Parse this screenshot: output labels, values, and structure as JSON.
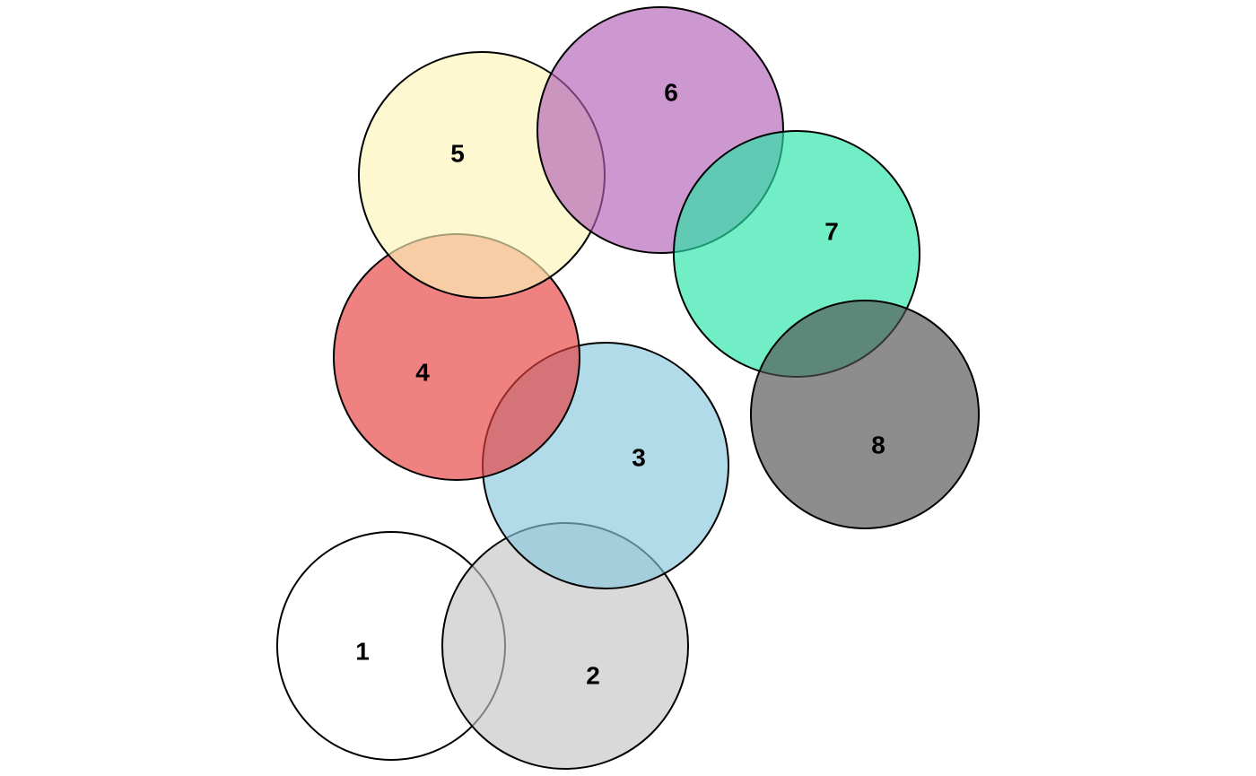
{
  "diagram": {
    "sets": [
      {
        "label": "1",
        "fill": "#ffffff"
      },
      {
        "label": "2",
        "fill": "#c4c4c4"
      },
      {
        "label": "3",
        "fill": "#87c7db"
      },
      {
        "label": "4",
        "fill": "#e63d3d"
      },
      {
        "label": "5",
        "fill": "#fcf5b7"
      },
      {
        "label": "6",
        "fill": "#b25fb5"
      },
      {
        "label": "7",
        "fill": "#26e5a8"
      },
      {
        "label": "8",
        "fill": "#505050"
      }
    ]
  }
}
